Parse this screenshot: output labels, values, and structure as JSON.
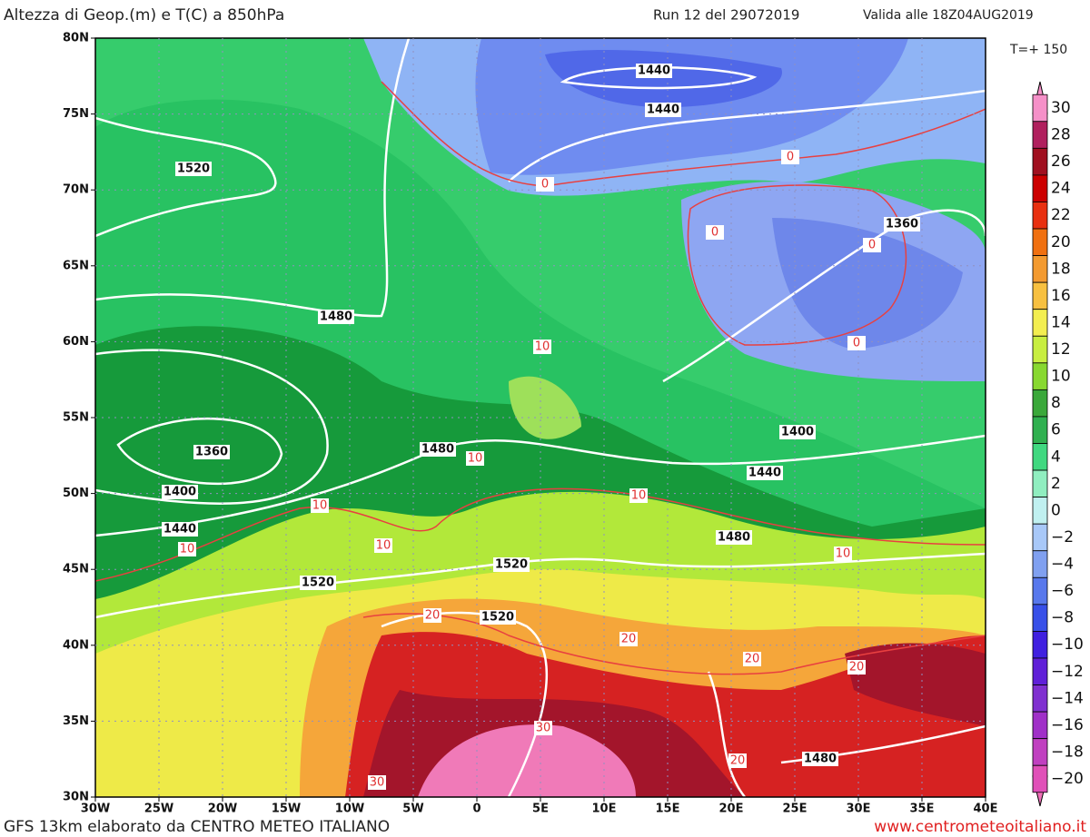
{
  "header": {
    "title": "Altezza di Geop.(m) e T(C) a 850hPa",
    "run": "Run 12 del 29072019",
    "valid": "Valida alle 18Z04AUG2019",
    "step": "T=+ 150"
  },
  "map": {
    "lat_labels": [
      "80N",
      "75N",
      "70N",
      "65N",
      "60N",
      "55N",
      "50N",
      "45N",
      "40N",
      "35N",
      "30N"
    ],
    "lon_labels": [
      "30W",
      "25W",
      "20W",
      "15W",
      "10W",
      "5W",
      "0",
      "5E",
      "10E",
      "15E",
      "20E",
      "25E",
      "30E",
      "35E",
      "40E"
    ],
    "height_labels": [
      "1440",
      "1440",
      "1520",
      "1360",
      "1480",
      "1360",
      "1480",
      "1400",
      "1440",
      "1400",
      "1440",
      "1480",
      "1520",
      "1520",
      "1520",
      "1480"
    ],
    "temperature_labels": [
      "0",
      "0",
      "0",
      "0",
      "0",
      "10",
      "10",
      "10",
      "10",
      "10",
      "10",
      "10",
      "20",
      "20",
      "20",
      "20",
      "20",
      "30",
      "30"
    ]
  },
  "colorbar": {
    "labels": [
      "30",
      "28",
      "26",
      "24",
      "22",
      "20",
      "18",
      "16",
      "14",
      "12",
      "10",
      "8",
      "6",
      "4",
      "2",
      "0",
      "−2",
      "−4",
      "−6",
      "−8",
      "−10",
      "−12",
      "−14",
      "−16",
      "−18",
      "−20"
    ]
  },
  "footer": {
    "left": "GFS 13km elaborato da CENTRO METEO ITALIANO",
    "right": "www.centrometeoitaliano.it"
  }
}
